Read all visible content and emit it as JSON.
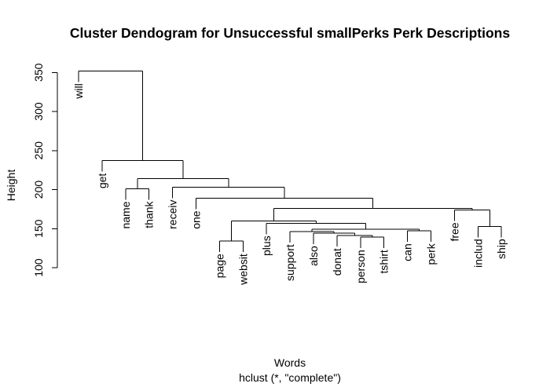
{
  "chart_data": {
    "type": "dendrogram",
    "title": "Cluster Dendogram for Unsuccessful smallPerks Perk Descriptions",
    "xlabel": "Words",
    "sublabel": "hclust (*, \"complete\")",
    "ylabel": "Height",
    "ylim": [
      100,
      355
    ],
    "yticks": [
      100,
      150,
      200,
      250,
      300,
      350
    ],
    "leaves": [
      "will",
      "get",
      "name",
      "thank",
      "receiv",
      "one",
      "page",
      "websit",
      "plus",
      "support",
      "also",
      "donat",
      "person",
      "tshirt",
      "can",
      "perk",
      "free",
      "includ",
      "ship"
    ],
    "merges": [
      {
        "left": "leaf:page",
        "right": "leaf:websit",
        "height": 134
      },
      {
        "left": "leaf:person",
        "right": "leaf:tshirt",
        "height": 139
      },
      {
        "left": "leaf:donat",
        "right": "node:1",
        "height": 141
      },
      {
        "left": "leaf:also",
        "right": "node:2",
        "height": 144
      },
      {
        "left": "leaf:support",
        "right": "node:3",
        "height": 146
      },
      {
        "left": "leaf:can",
        "right": "leaf:perk",
        "height": 147
      },
      {
        "left": "node:4",
        "right": "node:5",
        "height": 149
      },
      {
        "left": "leaf:plus",
        "right": "node:6",
        "height": 157
      },
      {
        "left": "leaf:includ",
        "right": "leaf:ship",
        "height": 153
      },
      {
        "left": "node:0",
        "right": "node:7",
        "height": 160
      },
      {
        "left": "leaf:free",
        "right": "node:8",
        "height": 174
      },
      {
        "left": "node:9",
        "right": "node:10",
        "height": 176
      },
      {
        "left": "leaf:one",
        "right": "node:11",
        "height": 189
      },
      {
        "left": "leaf:name",
        "right": "leaf:thank",
        "height": 201
      },
      {
        "left": "leaf:receiv",
        "right": "node:12",
        "height": 203
      },
      {
        "left": "node:13",
        "right": "node:14",
        "height": 214
      },
      {
        "left": "leaf:get",
        "right": "node:15",
        "height": 237
      },
      {
        "left": "leaf:will",
        "right": "node:16",
        "height": 352
      }
    ]
  }
}
